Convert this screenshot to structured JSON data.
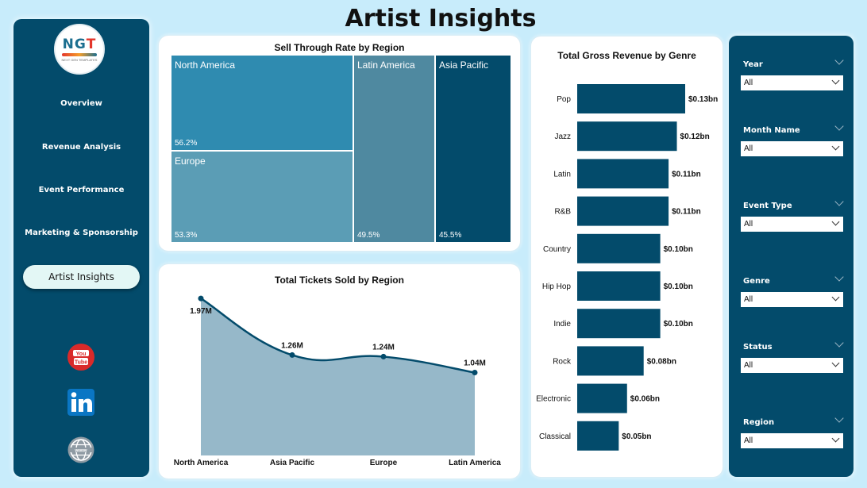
{
  "page_title": "Artist Insights",
  "logo": {
    "mark_main": "NG",
    "mark_accent": "T",
    "tagline": "NEXT GEN TEMPLATES"
  },
  "nav": {
    "items": [
      "Overview",
      "Revenue Analysis",
      "Event Performance",
      "Marketing & Sponsorship"
    ],
    "active": "Artist Insights",
    "social": [
      "youtube-icon",
      "linkedin-icon",
      "globe-icon"
    ]
  },
  "sell_through": {
    "title": "Sell Through Rate by Region",
    "cells": [
      {
        "region": "North America",
        "value": "56.2%",
        "color": "#2f8bb0"
      },
      {
        "region": "Europe",
        "value": "53.3%",
        "color": "#5b9db5"
      },
      {
        "region": "Latin America",
        "value": "49.5%",
        "color": "#4f89a0"
      },
      {
        "region": "Asia Pacific",
        "value": "45.5%",
        "color": "#034b6b"
      }
    ]
  },
  "chart_data": [
    {
      "type": "area",
      "title": "Total Tickets Sold by Region",
      "categories": [
        "North America",
        "Asia Pacific",
        "Europe",
        "Latin America"
      ],
      "values": [
        1.97,
        1.26,
        1.24,
        1.04
      ],
      "labels": [
        "1.97M",
        "1.26M",
        "1.24M",
        "1.04M"
      ],
      "unit": "M",
      "line_color": "#034b6b",
      "fill_color": "#90b4c6"
    },
    {
      "type": "bar",
      "orientation": "horizontal",
      "title": "Total Gross Revenue by Genre",
      "categories": [
        "Pop",
        "Jazz",
        "Latin",
        "R&B",
        "Country",
        "Hip Hop",
        "Indie",
        "Rock",
        "Electronic",
        "Classical"
      ],
      "values": [
        0.13,
        0.12,
        0.11,
        0.11,
        0.1,
        0.1,
        0.1,
        0.08,
        0.06,
        0.05
      ],
      "labels": [
        "$0.13bn",
        "$0.12bn",
        "$0.11bn",
        "$0.11bn",
        "$0.10bn",
        "$0.10bn",
        "$0.10bn",
        "$0.08bn",
        "$0.06bn",
        "$0.05bn"
      ],
      "bar_color": "#034b6b"
    }
  ],
  "slicers": [
    {
      "label": "Year",
      "value": "All"
    },
    {
      "label": "Month Name",
      "value": "All"
    },
    {
      "label": "Event Type",
      "value": "All"
    },
    {
      "label": "Genre",
      "value": "All"
    },
    {
      "label": "Status",
      "value": "All"
    },
    {
      "label": "Region",
      "value": "All"
    }
  ]
}
